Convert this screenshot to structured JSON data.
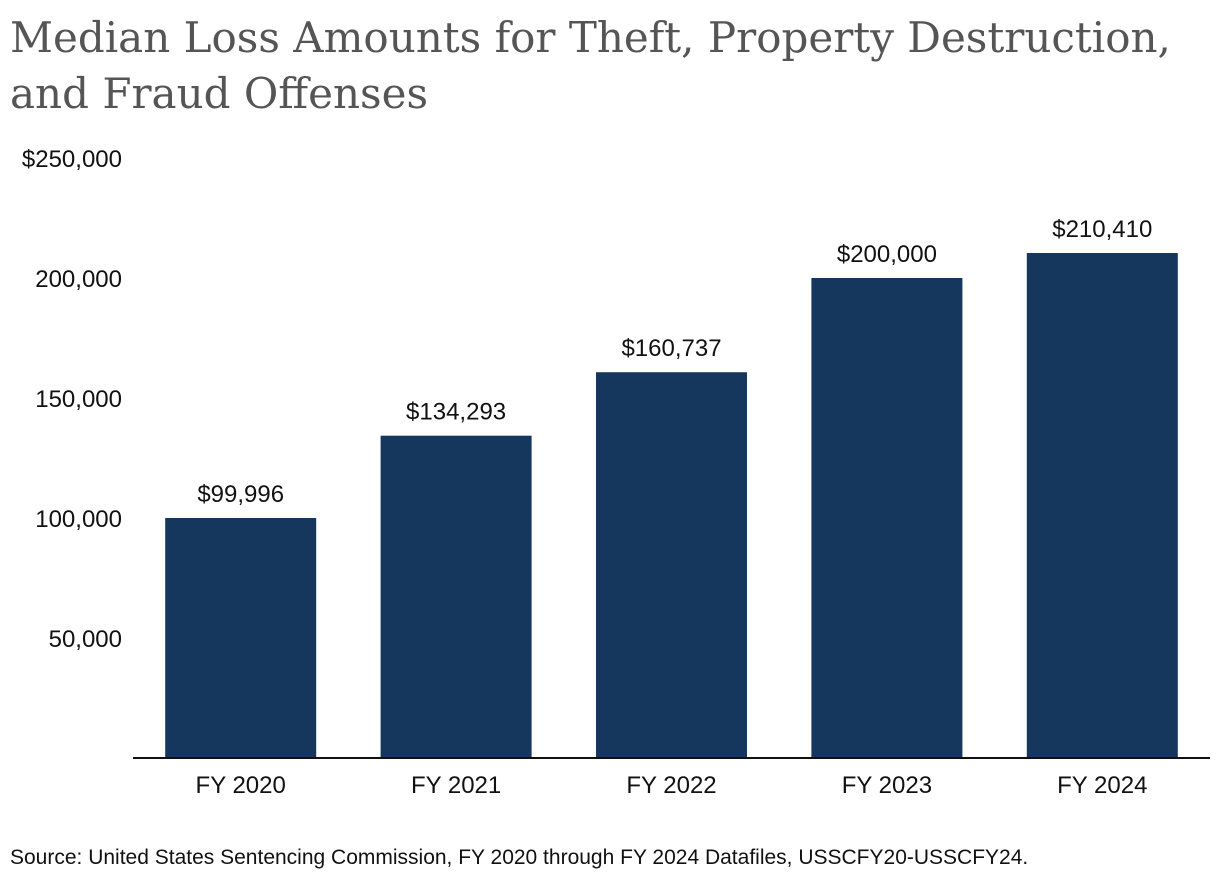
{
  "chart_data": {
    "type": "bar",
    "title": "Median Loss Amounts for Theft, Property Destruction, and Fraud Offenses",
    "categories": [
      "FY 2020",
      "FY 2021",
      "FY 2022",
      "FY 2023",
      "FY 2024"
    ],
    "values": [
      99996,
      134293,
      160737,
      200000,
      210410
    ],
    "data_labels": [
      "$99,996",
      "$134,293",
      "$160,737",
      "$200,000",
      "$210,410"
    ],
    "y_ticks": [
      50000,
      100000,
      150000,
      200000,
      250000
    ],
    "y_tick_labels": [
      "50,000",
      "100,000",
      "150,000",
      "200,000",
      "$250,000"
    ],
    "ylim": [
      0,
      250000
    ],
    "xlabel": "",
    "ylabel": "",
    "grid": false,
    "bar_color": "#15375e",
    "axis_color": "#111111",
    "source": "Source: United States Sentencing Commission, FY 2020 through FY 2024 Datafiles, USSCFY20-USSCFY24."
  }
}
